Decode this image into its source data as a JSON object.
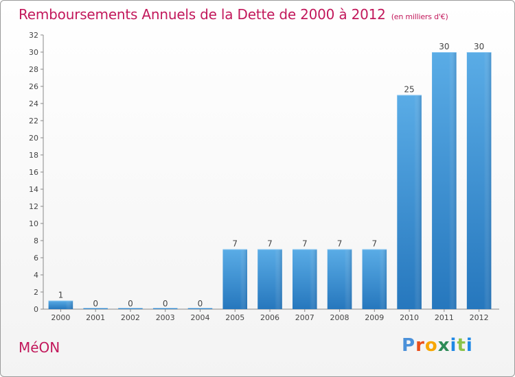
{
  "chart_data": {
    "type": "bar",
    "title": "Remboursements Annuels de la Dette de 2000 à 2012",
    "subtitle": "(en milliers d'€)",
    "categories": [
      "2000",
      "2001",
      "2002",
      "2003",
      "2004",
      "2005",
      "2006",
      "2007",
      "2008",
      "2009",
      "2010",
      "2011",
      "2012"
    ],
    "values": [
      1,
      0,
      0,
      0,
      0,
      7,
      7,
      7,
      7,
      7,
      25,
      30,
      30
    ],
    "ylim": [
      0,
      32
    ],
    "yticks": [
      0,
      2,
      4,
      6,
      8,
      10,
      12,
      14,
      16,
      18,
      20,
      22,
      24,
      26,
      28,
      30,
      32
    ],
    "xlabel": "",
    "ylabel": "",
    "grid": false,
    "bar_color": "#3d93d6"
  },
  "footer": {
    "commune": "MéON",
    "brand": "Proxiti"
  }
}
